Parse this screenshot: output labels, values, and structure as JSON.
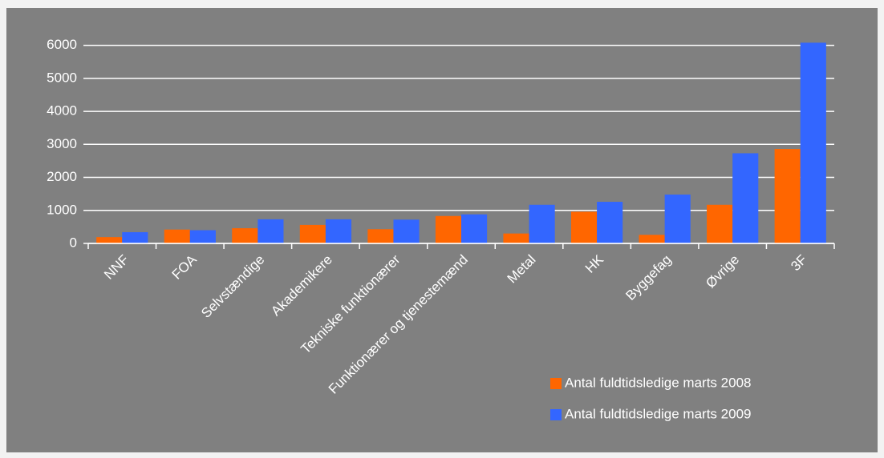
{
  "chart_data": {
    "type": "bar",
    "categories": [
      "NNF",
      "FOA",
      "Selvstændige",
      "Akademikere",
      "Tekniske funktionærer",
      "Funktionærer og tjenestemænd",
      "Metal",
      "HK",
      "Byggefag",
      "Øvrige",
      "3F"
    ],
    "series": [
      {
        "name": "Antal fuldtidsledige marts 2008",
        "color": "#ff6600",
        "values": [
          190,
          420,
          460,
          560,
          430,
          830,
          300,
          960,
          260,
          1170,
          2860
        ]
      },
      {
        "name": "Antal fuldtidsledige marts 2009",
        "color": "#3366ff",
        "values": [
          340,
          400,
          730,
          730,
          720,
          880,
          1170,
          1260,
          1480,
          2730,
          6080
        ]
      }
    ],
    "ylim": [
      0,
      6500
    ],
    "yticks": [
      0,
      1000,
      2000,
      3000,
      4000,
      5000,
      6000
    ],
    "grid": true,
    "legend": "bottom-right"
  }
}
